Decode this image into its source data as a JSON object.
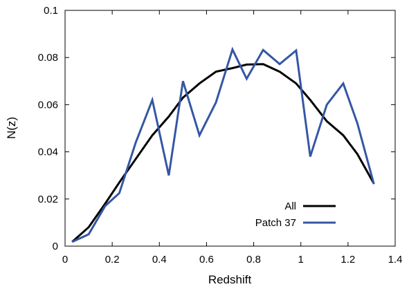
{
  "chart_data": {
    "type": "line",
    "title": "",
    "xlabel": "Redshift",
    "ylabel": "N(z)",
    "xlim": [
      0,
      1.4
    ],
    "ylim": [
      0,
      0.1
    ],
    "x_ticks": [
      0,
      0.2,
      0.4,
      0.6,
      0.8,
      1,
      1.2,
      1.4
    ],
    "x_tick_labels": [
      "0",
      "0.2",
      "0.4",
      "0.6",
      "0.8",
      "1",
      "1.2",
      "1.4"
    ],
    "y_ticks": [
      0,
      0.02,
      0.04,
      0.06,
      0.08,
      0.1
    ],
    "y_tick_labels": [
      "0",
      "0.02",
      "0.04",
      "0.06",
      "0.08",
      "0.1"
    ],
    "grid": false,
    "legend_position": "bottom-right",
    "series": [
      {
        "name": "All",
        "color": "#000000",
        "x": [
          0.03,
          0.1,
          0.17,
          0.23,
          0.3,
          0.37,
          0.44,
          0.5,
          0.57,
          0.64,
          0.71,
          0.77,
          0.84,
          0.91,
          0.98,
          1.04,
          1.11,
          1.18,
          1.24,
          1.31
        ],
        "y": [
          0.0018,
          0.008,
          0.018,
          0.027,
          0.037,
          0.047,
          0.055,
          0.063,
          0.069,
          0.074,
          0.0755,
          0.077,
          0.0772,
          0.074,
          0.069,
          0.062,
          0.053,
          0.047,
          0.039,
          0.0265
        ]
      },
      {
        "name": "Patch 37",
        "color": "#3556a5",
        "x": [
          0.03,
          0.1,
          0.17,
          0.23,
          0.3,
          0.37,
          0.44,
          0.5,
          0.57,
          0.64,
          0.71,
          0.77,
          0.84,
          0.91,
          0.98,
          1.04,
          1.11,
          1.18,
          1.24,
          1.31
        ],
        "y": [
          0.0018,
          0.005,
          0.017,
          0.0225,
          0.044,
          0.062,
          0.03,
          0.07,
          0.047,
          0.061,
          0.0834,
          0.071,
          0.0832,
          0.0772,
          0.083,
          0.038,
          0.06,
          0.069,
          0.052,
          0.0263
        ]
      }
    ]
  }
}
